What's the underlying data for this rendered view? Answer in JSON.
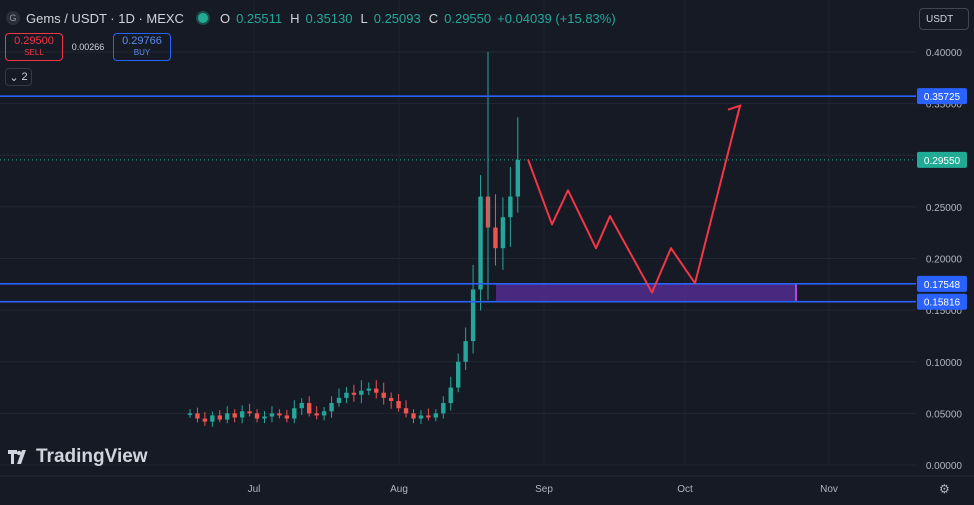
{
  "header": {
    "symbol_badge": "G",
    "title": "Gems / USDT · 1D · MEXC",
    "ohlc": [
      {
        "k": "O",
        "v": "0.25511"
      },
      {
        "k": "H",
        "v": "0.35130"
      },
      {
        "k": "L",
        "v": "0.25093"
      },
      {
        "k": "C",
        "v": "0.29550"
      }
    ],
    "change": "+0.04039 (+15.83%)"
  },
  "trade": {
    "sell_price": "0.29500",
    "sell_label": "SELL",
    "spread": "0.00266",
    "buy_price": "0.29766",
    "buy_label": "BUY"
  },
  "indicators_count": "2",
  "currency": "USDT",
  "logo_text": "TradingView",
  "icons": [
    "status-dot-icon",
    "chevron-down-icon",
    "tradingview-logo-icon",
    "gear-icon"
  ],
  "colors": {
    "background": "#161a25",
    "up": "#26a69a",
    "down": "#ef5350",
    "level_line": "#2962ff",
    "arrow": "#f23645",
    "zone_fill": "#5b2d9e",
    "current_price": "#22ab94"
  },
  "chart_data": {
    "type": "candlestick",
    "y_ticks": [
      "0.40000",
      "0.35000",
      "0.30000",
      "0.25000",
      "0.20000",
      "0.15000",
      "0.10000",
      "0.05000",
      "0.00000"
    ],
    "x_ticks": [
      "Jul",
      "Aug",
      "Sep",
      "Oct",
      "Nov"
    ],
    "ylim": [
      0,
      0.4
    ],
    "levels": [
      {
        "label": "0.35725",
        "value": 0.35725
      },
      {
        "label": "0.17548",
        "value": 0.17548
      },
      {
        "label": "0.15816",
        "value": 0.15816
      }
    ],
    "current_price": {
      "label": "0.29550",
      "value": 0.2955
    },
    "projection_path": [
      0.296,
      0.233,
      0.266,
      0.21,
      0.241,
      0.167,
      0.21,
      0.176,
      0.348
    ],
    "candle_approx_closes": [
      0.05,
      0.045,
      0.042,
      0.048,
      0.044,
      0.05,
      0.046,
      0.052,
      0.05,
      0.045,
      0.047,
      0.05,
      0.048,
      0.045,
      0.055,
      0.06,
      0.05,
      0.048,
      0.052,
      0.06,
      0.065,
      0.07,
      0.068,
      0.072,
      0.074,
      0.07,
      0.065,
      0.062,
      0.055,
      0.05,
      0.045,
      0.048,
      0.046,
      0.05,
      0.06,
      0.075,
      0.1,
      0.12,
      0.17,
      0.26,
      0.23,
      0.21,
      0.24,
      0.26,
      0.2955
    ]
  }
}
